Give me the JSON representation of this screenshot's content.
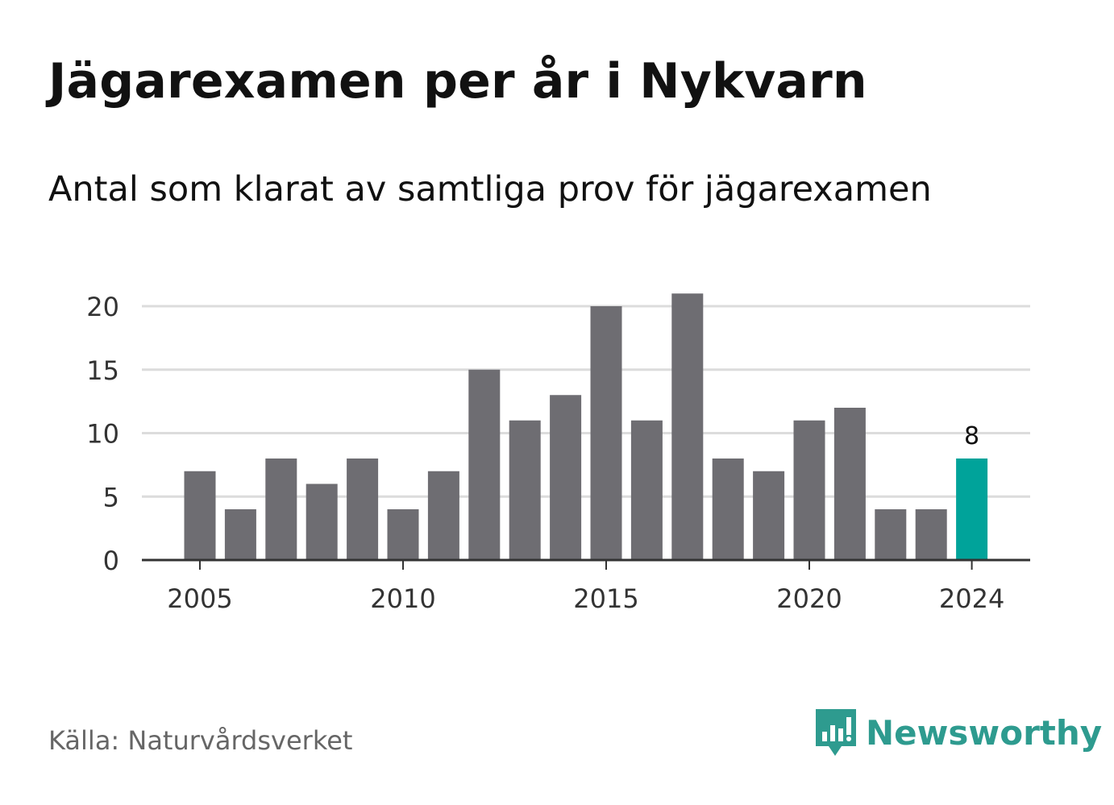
{
  "title": "Jägarexamen per år i Nykvarn",
  "subtitle": "Antal som klarat av samtliga prov för jägarexamen",
  "source": "Källa: Naturvårdsverket",
  "brand": "Newsworthy",
  "colors": {
    "bar": "#6e6d72",
    "highlight": "#00a39a",
    "grid": "#dcdcdc",
    "axis": "#333333",
    "text": "#111111",
    "tick_text": "#333333"
  },
  "chart_data": {
    "type": "bar",
    "categories": [
      "2005",
      "2006",
      "2007",
      "2008",
      "2009",
      "2010",
      "2011",
      "2012",
      "2013",
      "2014",
      "2015",
      "2016",
      "2017",
      "2018",
      "2019",
      "2020",
      "2021",
      "2022",
      "2023",
      "2024"
    ],
    "values": [
      7,
      4,
      8,
      6,
      8,
      4,
      7,
      15,
      11,
      13,
      20,
      11,
      21,
      8,
      7,
      11,
      12,
      4,
      4,
      8
    ],
    "highlight_index": 19,
    "data_labels": [
      {
        "category": "2024",
        "text": "8"
      }
    ],
    "x_ticks": [
      "2005",
      "2010",
      "2015",
      "2020",
      "2024"
    ],
    "y_ticks": [
      "0",
      "5",
      "10",
      "15",
      "20"
    ],
    "ylim": [
      0,
      21
    ],
    "grid": true,
    "xlabel": "",
    "ylabel": ""
  }
}
